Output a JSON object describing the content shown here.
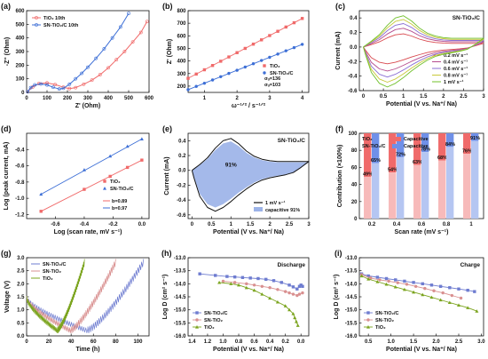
{
  "colors": {
    "red": "#f06a6a",
    "blue": "#3d6fd6",
    "navy": "#6e7cd0",
    "pink": "#d99090",
    "olive": "#7ba41e",
    "darkred": "#d8474d",
    "mauve": "#b54d8e",
    "purple": "#8a6fd4",
    "yellow": "#c8c83a",
    "green": "#70c02a",
    "bar_tio2": "#f06a6a",
    "bar_tio2_cap": "#f7baba",
    "bar_sn": "#6f90e8",
    "bar_sn_cap": "#b5c6f2"
  },
  "chart_data": [
    {
      "panel": "(a)",
      "type": "line",
      "xlabel": "Z' (Ohm)",
      "ylabel": "-Z'' (Ohm)",
      "xlim": [
        0,
        600
      ],
      "ylim": [
        0,
        600
      ],
      "xticks": [
        0,
        100,
        200,
        300,
        400,
        500,
        600
      ],
      "yticks": [
        0,
        100,
        200,
        300,
        400,
        500,
        600
      ],
      "legend_position": "top-left",
      "series": [
        {
          "name": "TiO₂ 10th",
          "color": "red",
          "x": [
            5,
            30,
            60,
            100,
            140,
            180,
            210,
            240,
            280,
            320,
            360,
            400,
            440,
            480,
            520,
            560,
            590
          ],
          "y": [
            5,
            40,
            65,
            70,
            58,
            38,
            28,
            35,
            60,
            90,
            130,
            180,
            240,
            300,
            370,
            440,
            520
          ]
        },
        {
          "name": "SN-TiO₂/C 10th",
          "color": "blue",
          "x": [
            5,
            20,
            40,
            70,
            100,
            130,
            160,
            180,
            210,
            240,
            270,
            300,
            340,
            380,
            420,
            460,
            500
          ],
          "y": [
            5,
            35,
            55,
            62,
            55,
            38,
            25,
            30,
            60,
            100,
            140,
            185,
            250,
            320,
            400,
            480,
            580
          ]
        }
      ]
    },
    {
      "panel": "(b)",
      "type": "scatter",
      "xlabel": "ω⁻¹ᐟ² / s⁻¹ᐟ²",
      "ylabel": "Z' (Ohm)",
      "xlim": [
        0.5,
        4.2
      ],
      "ylim": [
        150,
        800
      ],
      "xticks": [
        1,
        2,
        3,
        4
      ],
      "yticks": [
        200,
        300,
        400,
        500,
        600,
        700,
        800
      ],
      "legend_position": "bottom-right",
      "series": [
        {
          "name": "TiO₂",
          "color": "red",
          "x": [
            0.5,
            0.75,
            1.0,
            1.25,
            1.5,
            1.75,
            2.0,
            2.25,
            2.5,
            2.75,
            3.0,
            3.25,
            3.5,
            3.75,
            4.0
          ],
          "y": [
            262,
            296,
            330,
            364,
            398,
            432,
            466,
            500,
            534,
            568,
            602,
            636,
            670,
            704,
            738
          ]
        },
        {
          "name": "SN-TiO₂/C",
          "color": "blue",
          "x": [
            0.5,
            0.75,
            1.0,
            1.25,
            1.5,
            1.75,
            2.0,
            2.25,
            2.5,
            2.75,
            3.0,
            3.25,
            3.5,
            3.75,
            4.0
          ],
          "y": [
            172,
            198,
            223,
            249,
            275,
            301,
            326,
            352,
            378,
            404,
            429,
            455,
            481,
            506,
            532
          ]
        }
      ],
      "annotations": [
        "σᵤ=136",
        "σᵤ=103"
      ]
    },
    {
      "panel": "(c)",
      "type": "line",
      "title": "SN-TiO₂/C",
      "xlabel": "Potential (V vs. Na⁺/ Na)",
      "ylabel": "Current (mA)",
      "xlim": [
        -0.1,
        3.0
      ],
      "ylim": [
        -0.6,
        0.5
      ],
      "xticks": [
        0.0,
        0.5,
        1.0,
        1.5,
        2.0,
        2.5,
        3.0
      ],
      "yticks": [
        -0.6,
        -0.4,
        -0.2,
        0.0,
        0.2,
        0.4
      ],
      "legend_position": "right",
      "series": [
        {
          "name": "0.2 mV s⁻¹",
          "color": "darkred",
          "scale": 0.42
        },
        {
          "name": "0.4 mV s⁻¹",
          "color": "mauve",
          "scale": 0.6
        },
        {
          "name": "0.6 mV s⁻¹",
          "color": "purple",
          "scale": 0.75
        },
        {
          "name": "0.8 mV s⁻¹",
          "color": "yellow",
          "scale": 0.88
        },
        {
          "name": "1 mV s⁻¹",
          "color": "green",
          "scale": 1.0
        }
      ],
      "base_curve": {
        "x_upper": [
          0.0,
          0.2,
          0.4,
          0.6,
          0.8,
          1.0,
          1.2,
          1.4,
          1.6,
          1.8,
          2.0,
          2.2,
          2.4,
          2.6,
          2.8,
          3.0
        ],
        "y_upper": [
          0.0,
          0.08,
          0.17,
          0.3,
          0.4,
          0.43,
          0.36,
          0.26,
          0.19,
          0.15,
          0.13,
          0.12,
          0.12,
          0.12,
          0.12,
          0.12
        ],
        "x_lower": [
          3.0,
          2.8,
          2.6,
          2.4,
          2.2,
          2.0,
          1.8,
          1.6,
          1.4,
          1.2,
          1.0,
          0.8,
          0.6,
          0.4,
          0.2,
          0.05,
          0.0
        ],
        "y_lower": [
          0.12,
          0.04,
          -0.03,
          -0.06,
          -0.08,
          -0.1,
          -0.13,
          -0.18,
          -0.25,
          -0.33,
          -0.42,
          -0.5,
          -0.55,
          -0.5,
          -0.35,
          -0.1,
          0.0
        ]
      }
    },
    {
      "panel": "(d)",
      "type": "scatter",
      "xlabel": "Log (scan rate, mV s⁻¹)",
      "ylabel": "Log (peak current, mA)",
      "xlim": [
        -0.8,
        0.05
      ],
      "ylim": [
        -1.25,
        -0.2
      ],
      "xticks": [
        -0.6,
        -0.4,
        -0.2,
        0.0
      ],
      "yticks": [
        -1.2,
        -1.0,
        -0.8,
        -0.6,
        -0.4
      ],
      "legend_position": "bottom-right",
      "series": [
        {
          "name": "TiO₂",
          "color": "red",
          "x": [
            -0.7,
            -0.4,
            -0.22,
            -0.1,
            0.0
          ],
          "y": [
            -1.16,
            -0.89,
            -0.73,
            -0.62,
            -0.53
          ]
        },
        {
          "name": "SN-TiO₂/C",
          "color": "blue",
          "x": [
            -0.7,
            -0.4,
            -0.22,
            -0.1,
            0.0
          ],
          "y": [
            -0.95,
            -0.65,
            -0.48,
            -0.36,
            -0.27
          ]
        }
      ],
      "annotations": [
        "b=0.89",
        "b=0.97"
      ]
    },
    {
      "panel": "(e)",
      "type": "area",
      "title": "SN-TiO₂/C",
      "xlabel": "Potential (V vs. Na⁺/ Na)",
      "ylabel": "Current (mA)",
      "xlim": [
        -0.1,
        3.0
      ],
      "ylim": [
        -0.65,
        0.5
      ],
      "xticks": [
        0.0,
        0.5,
        1.0,
        1.5,
        2.0,
        2.5,
        3.0
      ],
      "yticks": [
        -0.6,
        -0.4,
        -0.2,
        0.0,
        0.2,
        0.4
      ],
      "legend_position": "bottom-right",
      "annotation": "91%",
      "series": [
        {
          "name": "1 mV s⁻¹",
          "color": "#111111"
        },
        {
          "name": "capacitive 91%",
          "color": "#5a80d8"
        }
      ]
    },
    {
      "panel": "(f)",
      "type": "bar",
      "xlabel": "Scan rate (mV s⁻¹)",
      "ylabel": "Contribution (×100%)",
      "categories": [
        "0.2",
        "0.4",
        "0.6",
        "0.8",
        "1"
      ],
      "ylim": [
        0,
        100
      ],
      "yticks": [
        0,
        20,
        40,
        60,
        80,
        100
      ],
      "legend_position": "top-left",
      "legend": [
        "TiO₂",
        "SN-TiO₂/C",
        "Capacitive",
        "Capacitive"
      ],
      "series": [
        {
          "name": "TiO₂",
          "capacitive": [
            49,
            54,
            63,
            68,
            76
          ]
        },
        {
          "name": "SN-TiO₂/C",
          "capacitive": [
            65,
            72,
            78,
            84,
            91
          ]
        }
      ],
      "labels": [
        [
          "49%",
          "54%",
          "63%",
          "68%",
          "76%"
        ],
        [
          "65%",
          "72%",
          "78%",
          "84%",
          "91%"
        ]
      ]
    },
    {
      "panel": "(g)",
      "type": "line",
      "xlabel": "Time (h)",
      "ylabel": "Voltage (V)",
      "xlim": [
        0,
        110
      ],
      "ylim": [
        0,
        3.0
      ],
      "xticks": [
        0,
        20,
        40,
        60,
        80,
        100
      ],
      "yticks": [
        0.0,
        0.5,
        1.0,
        1.5,
        2.0,
        2.5,
        3.0
      ],
      "legend_position": "top-left",
      "series": [
        {
          "name": "SN-TiO₂/C",
          "color": "navy"
        },
        {
          "name": "SN-TiO₂",
          "color": "pink"
        },
        {
          "name": "TiO₂",
          "color": "olive"
        }
      ]
    },
    {
      "panel": "(h)",
      "type": "line",
      "title": "Discharge",
      "xlabel": "Potential (V vs. Na⁺/ Na)",
      "ylabel": "Log D (cm² s⁻¹)",
      "xlim": [
        1.45,
        -0.1
      ],
      "ylim": [
        -16.0,
        -13.0
      ],
      "xticks": [
        1.4,
        1.2,
        1.0,
        0.8,
        0.6,
        0.4,
        0.2,
        0.0
      ],
      "yticks": [
        -13.0,
        -13.5,
        -14.0,
        -14.5,
        -15.0,
        -15.5,
        -16.0
      ],
      "legend_position": "bottom-left",
      "series": [
        {
          "name": "SN-TiO₂/C",
          "color": "navy",
          "x": [
            1.3,
            1.1,
            0.95,
            0.85,
            0.75,
            0.65,
            0.55,
            0.45,
            0.35,
            0.25,
            0.15,
            0.1,
            0.05,
            0.02,
            0.0,
            -0.02
          ],
          "y": [
            -13.62,
            -13.68,
            -13.72,
            -13.74,
            -13.76,
            -13.78,
            -13.8,
            -13.83,
            -13.88,
            -13.95,
            -14.05,
            -14.12,
            -14.2,
            -14.1,
            -14.05,
            -14.1
          ]
        },
        {
          "name": "SN-TiO₂",
          "color": "pink",
          "x": [
            1.0,
            0.85,
            0.7,
            0.6,
            0.5,
            0.4,
            0.3,
            0.2,
            0.15,
            0.1,
            0.05,
            0.02,
            -0.02
          ],
          "y": [
            -13.9,
            -13.95,
            -14.0,
            -14.05,
            -14.1,
            -14.15,
            -14.22,
            -14.3,
            -14.35,
            -14.4,
            -14.45,
            -14.4,
            -14.35
          ]
        },
        {
          "name": "TiO₂",
          "color": "olive",
          "x": [
            1.05,
            0.9,
            0.8,
            0.7,
            0.6,
            0.5,
            0.4,
            0.3,
            0.2,
            0.15,
            0.1,
            0.08,
            0.06,
            0.04
          ],
          "y": [
            -13.95,
            -14.0,
            -14.05,
            -14.15,
            -14.25,
            -14.4,
            -14.55,
            -14.7,
            -14.85,
            -15.0,
            -15.15,
            -15.3,
            -15.45,
            -15.6
          ]
        }
      ]
    },
    {
      "panel": "(i)",
      "type": "line",
      "title": "Charge",
      "xlabel": "Potential (V vs. Na⁺/ Na)",
      "ylabel": "Log D (cm² s⁻¹)",
      "xlim": [
        0.3,
        3.05
      ],
      "ylim": [
        -16.0,
        -13.0
      ],
      "xticks": [
        0.5,
        1.0,
        1.5,
        2.0,
        2.5,
        3.0
      ],
      "yticks": [
        -13.0,
        -13.5,
        -14.0,
        -14.5,
        -15.0,
        -15.5,
        -16.0
      ],
      "legend_position": "bottom-left",
      "series": [
        {
          "name": "SN-TiO₂/C",
          "color": "navy",
          "x": [
            0.35,
            0.5,
            0.7,
            0.9,
            1.1,
            1.3,
            1.5,
            1.7,
            1.9,
            2.1,
            2.3,
            2.5,
            2.7,
            2.85
          ],
          "y": [
            -13.62,
            -13.7,
            -13.75,
            -13.8,
            -13.85,
            -13.9,
            -13.95,
            -14.0,
            -14.05,
            -14.1,
            -14.15,
            -14.2,
            -14.25,
            -14.3
          ]
        },
        {
          "name": "SN-TiO₂",
          "color": "pink",
          "x": [
            0.35,
            0.55,
            0.75,
            0.95,
            1.15,
            1.35,
            1.55,
            1.75,
            1.95,
            2.15,
            2.35,
            2.55
          ],
          "y": [
            -13.65,
            -13.78,
            -13.85,
            -13.9,
            -13.96,
            -14.02,
            -14.1,
            -14.18,
            -14.27,
            -14.35,
            -14.45,
            -14.55
          ]
        },
        {
          "name": "TiO₂",
          "color": "olive",
          "x": [
            0.35,
            0.5,
            0.7,
            0.9,
            1.1,
            1.3,
            1.5,
            1.7,
            1.9,
            2.1,
            2.3,
            2.5,
            2.7,
            2.9
          ],
          "y": [
            -13.7,
            -13.82,
            -13.92,
            -14.02,
            -14.12,
            -14.22,
            -14.32,
            -14.42,
            -14.52,
            -14.62,
            -14.72,
            -14.82,
            -14.92,
            -15.05
          ]
        }
      ]
    }
  ]
}
